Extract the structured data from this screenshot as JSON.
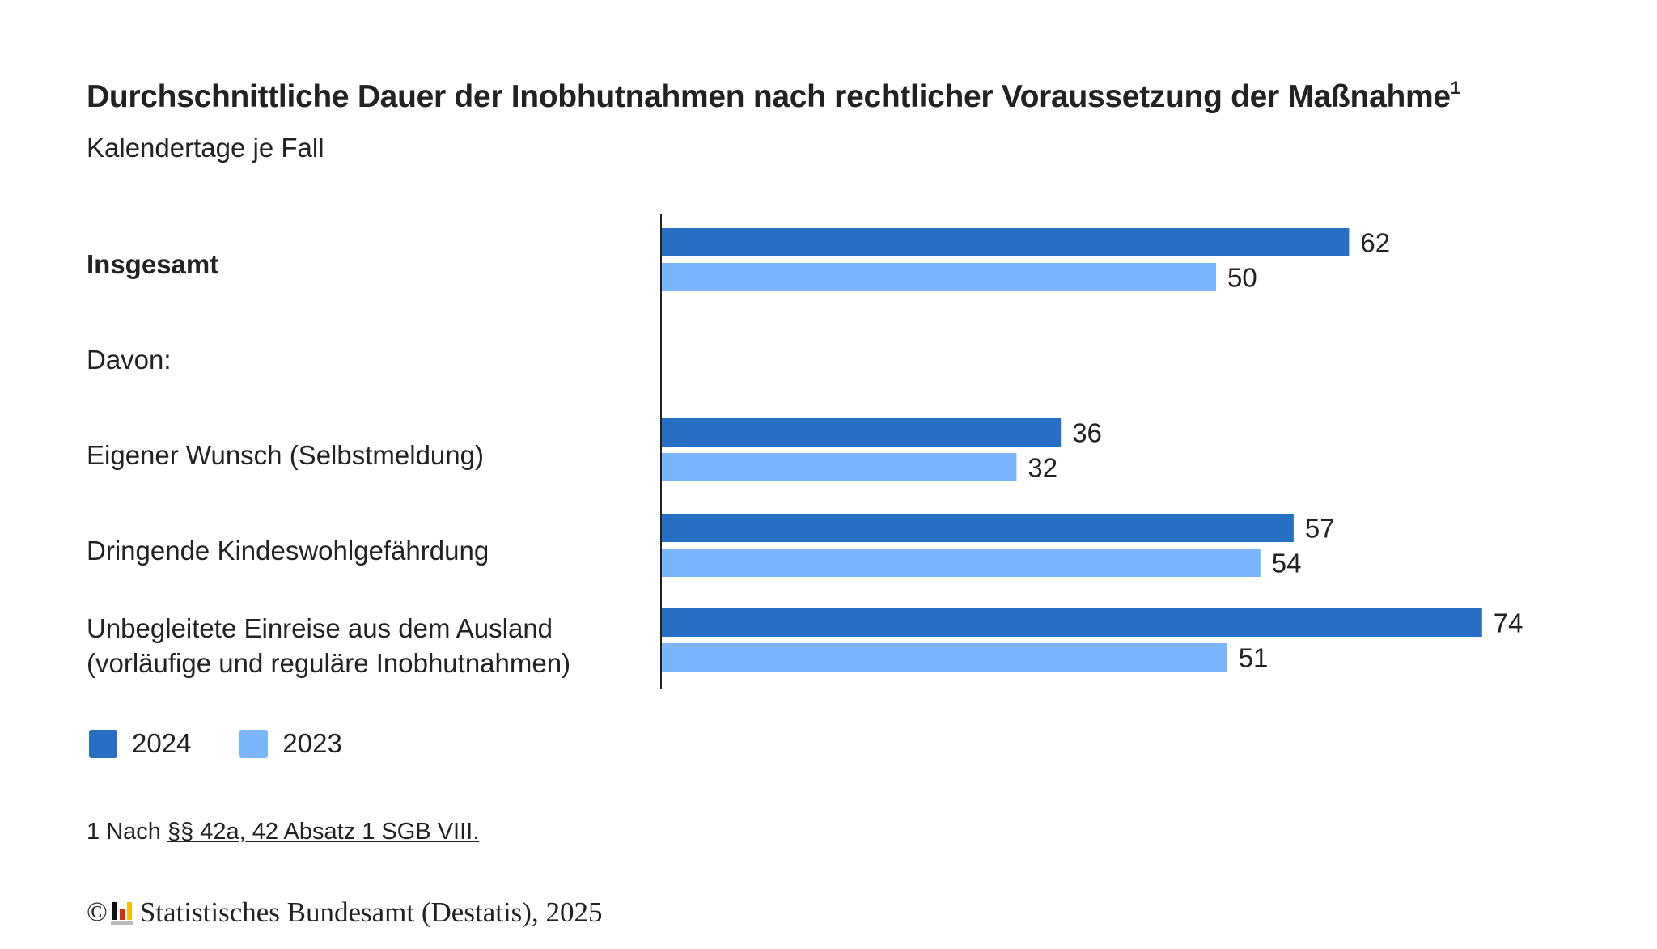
{
  "chart_data": {
    "type": "bar",
    "orientation": "horizontal",
    "title": "Durchschnittliche Dauer der Inobhutnahmen nach rechtlicher Voraussetzung der Maßnahme",
    "title_footnote_marker": "1",
    "subtitle": "Kalendertage je Fall",
    "xlabel": "",
    "ylabel": "",
    "xlim": [
      0,
      80
    ],
    "grid": false,
    "legend_position": "bottom-left",
    "rows": [
      {
        "label": "Insgesamt",
        "bold": true,
        "has_bars": true
      },
      {
        "label": "Davon:",
        "bold": false,
        "has_bars": false
      },
      {
        "label": "Eigener Wunsch (Selbstmeldung)",
        "bold": false,
        "has_bars": true
      },
      {
        "label": "Dringende Kindeswohlgefährdung",
        "bold": false,
        "has_bars": true
      },
      {
        "label": "Unbegleitete Einreise aus dem Ausland\n(vorläufige und reguläre Inobhutnahmen)",
        "bold": false,
        "has_bars": true
      }
    ],
    "categories": [
      "Insgesamt",
      "Eigener Wunsch (Selbstmeldung)",
      "Dringende Kindeswohlgefährdung",
      "Unbegleitete Einreise aus dem Ausland (vorläufige und reguläre Inobhutnahmen)"
    ],
    "series": [
      {
        "name": "2024",
        "color": "#266fc4",
        "values": [
          62,
          36,
          57,
          74
        ]
      },
      {
        "name": "2023",
        "color": "#79b5fd",
        "values": [
          50,
          32,
          54,
          51
        ]
      }
    ]
  },
  "labels": {
    "row0": "Insgesamt",
    "row1": "Davon:",
    "row2": "Eigener Wunsch (Selbstmeldung)",
    "row3": "Dringende Kindeswohlgefährdung",
    "row4a": "Unbegleitete Einreise aus dem Ausland",
    "row4b": "(vorläufige und reguläre Inobhutnahmen)"
  },
  "legend": [
    {
      "label": "2024",
      "color": "#266fc4"
    },
    {
      "label": "2023",
      "color": "#79b5fd"
    }
  ],
  "footnote": {
    "number": "1",
    "prefix": "Nach",
    "link_text": "§§ 42a, 42 Absatz 1 SGB VIII."
  },
  "copyright": {
    "symbol": "©",
    "text": "Statistisches Bundesamt (Destatis), 2025"
  }
}
